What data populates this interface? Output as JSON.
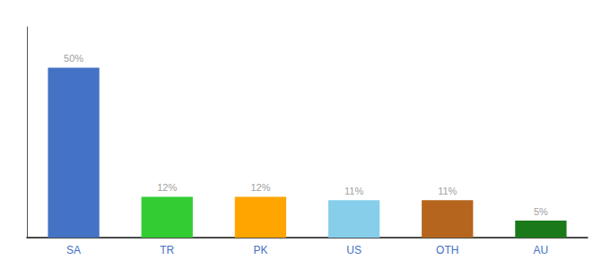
{
  "chart_data": {
    "type": "bar",
    "categories": [
      "SA",
      "TR",
      "PK",
      "US",
      "OTH",
      "AU"
    ],
    "values": [
      50,
      12,
      12,
      11,
      11,
      5
    ],
    "value_labels": [
      "50%",
      "12%",
      "12%",
      "11%",
      "11%",
      "5%"
    ],
    "colors": [
      "#4472c4",
      "#33cc33",
      "#ffa500",
      "#87ceeb",
      "#b5651d",
      "#1a7a1a"
    ],
    "ylim": [
      0,
      62
    ],
    "grid": false,
    "data_labels": true,
    "tick_labels": "x"
  }
}
